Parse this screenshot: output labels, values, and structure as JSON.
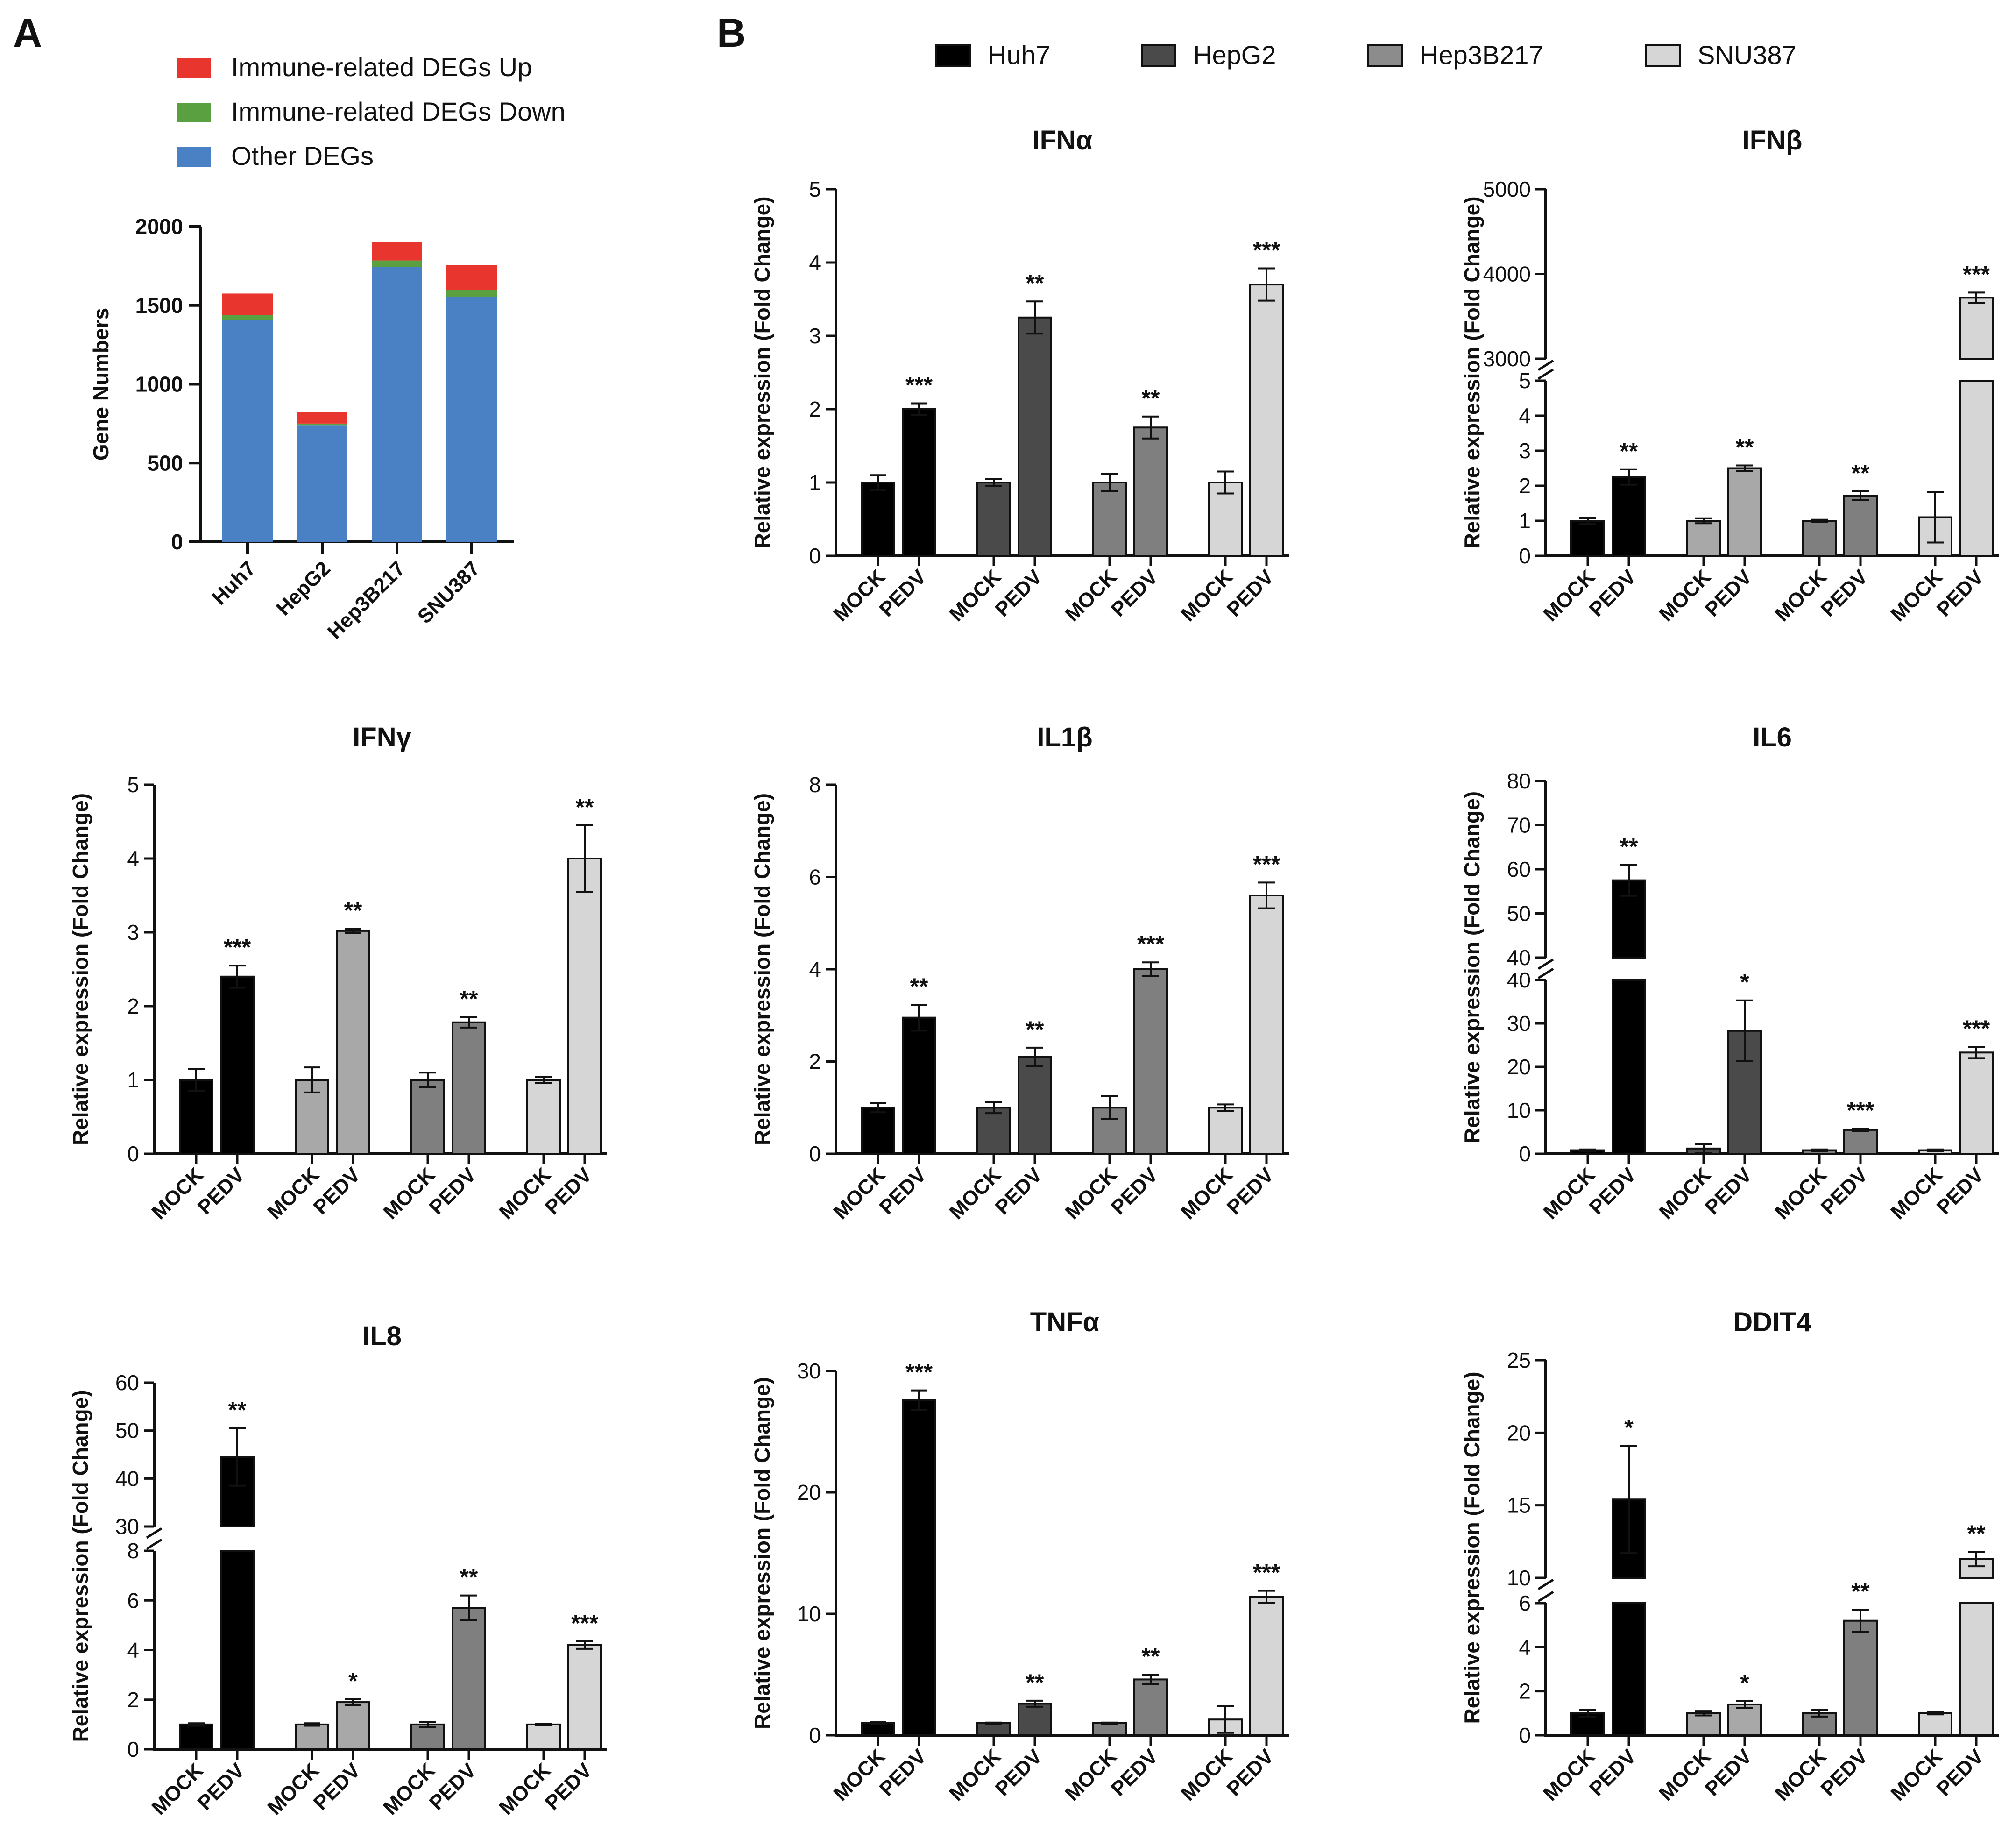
{
  "panels": {
    "a": "A",
    "b": "B"
  },
  "chart_data": [
    {
      "type": "bar",
      "stacked": true,
      "ylabel": "Gene Numbers",
      "ylim": [
        0,
        2000
      ],
      "yticks": [
        0,
        500,
        1000,
        1500,
        2000
      ],
      "categories": [
        "Huh7",
        "HepG2",
        "Hep3B217",
        "SNU387"
      ],
      "legend_position": "top",
      "series": [
        {
          "name": "Other DEGs",
          "color": "#4a80c4",
          "values": [
            1405,
            740,
            1745,
            1555
          ]
        },
        {
          "name": "Immune-related DEGs Down",
          "color": "#5aa041",
          "values": [
            35,
            10,
            40,
            45
          ]
        },
        {
          "name": "Immune-related DEGs Up",
          "color": "#e8352e",
          "values": [
            135,
            75,
            115,
            155
          ]
        }
      ]
    },
    {
      "type": "bar",
      "legend": [
        {
          "name": "Huh7",
          "color": "#000000"
        },
        {
          "name": "HepG2",
          "color": "#4a4a4a"
        },
        {
          "name": "Hep3B217",
          "color": "#8c8c8c"
        },
        {
          "name": "SNU387",
          "color": "#d6d6d6"
        }
      ],
      "legend_position": "top",
      "ylabel": "Relative expression (Fold Change)",
      "x_labels": [
        "MOCK",
        "PEDV"
      ],
      "charts": [
        {
          "title": "IFNα",
          "ylim": [
            0,
            5
          ],
          "yticks": [
            0,
            1,
            2,
            3,
            4,
            5
          ],
          "colors": [
            "#000000",
            "#4a4a4a",
            "#7f7f7f",
            "#d6d6d6"
          ],
          "mock": [
            1.0,
            1.0,
            1.0,
            1.0
          ],
          "mock_err": [
            0.1,
            0.05,
            0.12,
            0.15
          ],
          "pedv": [
            2.0,
            3.25,
            1.75,
            3.7
          ],
          "pedv_err": [
            0.08,
            0.22,
            0.15,
            0.22
          ],
          "sig": [
            "***",
            "**",
            "**",
            "***"
          ]
        },
        {
          "title": "IFNβ",
          "axis_break": true,
          "ylim_lower": [
            0,
            5
          ],
          "yticks_lower": [
            0,
            1,
            2,
            3,
            4,
            5
          ],
          "ylim_upper": [
            3000,
            5000
          ],
          "yticks_upper": [
            3000,
            4000,
            5000
          ],
          "colors": [
            "#000000",
            "#a8a8a8",
            "#7f7f7f",
            "#d6d6d6"
          ],
          "mock": [
            1.0,
            1.0,
            1.0,
            1.1
          ],
          "mock_err": [
            0.08,
            0.07,
            0.03,
            0.72
          ],
          "pedv": [
            2.25,
            2.5,
            1.72,
            3720
          ],
          "pedv_err": [
            0.22,
            0.08,
            0.12,
            60
          ],
          "sig": [
            "**",
            "**",
            "**",
            "***"
          ]
        },
        {
          "title": "IFNγ",
          "ylim": [
            0,
            5
          ],
          "yticks": [
            0,
            1,
            2,
            3,
            4,
            5
          ],
          "colors": [
            "#000000",
            "#a8a8a8",
            "#7f7f7f",
            "#d6d6d6"
          ],
          "mock": [
            1.0,
            1.0,
            1.0,
            1.0
          ],
          "mock_err": [
            0.15,
            0.17,
            0.1,
            0.04
          ],
          "pedv": [
            2.4,
            3.02,
            1.78,
            4.0
          ],
          "pedv_err": [
            0.15,
            0.03,
            0.07,
            0.45
          ],
          "sig": [
            "***",
            "**",
            "**",
            "**"
          ]
        },
        {
          "title": "IL1β",
          "ylim": [
            0,
            8
          ],
          "yticks": [
            0,
            2,
            4,
            6,
            8
          ],
          "colors": [
            "#000000",
            "#4a4a4a",
            "#7f7f7f",
            "#d6d6d6"
          ],
          "mock": [
            1.0,
            1.0,
            1.0,
            1.0
          ],
          "mock_err": [
            0.1,
            0.12,
            0.25,
            0.07
          ],
          "pedv": [
            2.95,
            2.1,
            4.0,
            5.6
          ],
          "pedv_err": [
            0.28,
            0.2,
            0.15,
            0.28
          ],
          "sig": [
            "**",
            "**",
            "***",
            "***"
          ]
        },
        {
          "title": "IL6",
          "axis_break": true,
          "ylim_lower": [
            0,
            40
          ],
          "yticks_lower": [
            0,
            10,
            20,
            30,
            40
          ],
          "ylim_upper": [
            40,
            80
          ],
          "yticks_upper": [
            40,
            50,
            60,
            70,
            80
          ],
          "colors": [
            "#000000",
            "#4a4a4a",
            "#7f7f7f",
            "#d6d6d6"
          ],
          "mock": [
            0.8,
            1.2,
            0.8,
            0.8
          ],
          "mock_err": [
            0.2,
            1.0,
            0.2,
            0.2
          ],
          "pedv": [
            57.5,
            28.3,
            5.5,
            23.3
          ],
          "pedv_err": [
            3.5,
            7.0,
            0.3,
            1.3
          ],
          "sig": [
            "**",
            "*",
            "***",
            "***"
          ]
        },
        {
          "title": "IL8",
          "axis_break": true,
          "ylim_lower": [
            0,
            8
          ],
          "yticks_lower": [
            0,
            2,
            4,
            6,
            8
          ],
          "ylim_upper": [
            30,
            60
          ],
          "yticks_upper": [
            30,
            40,
            50,
            60
          ],
          "colors": [
            "#000000",
            "#a8a8a8",
            "#7f7f7f",
            "#d6d6d6"
          ],
          "mock": [
            1.0,
            1.0,
            1.0,
            1.0
          ],
          "mock_err": [
            0.05,
            0.05,
            0.1,
            0.03
          ],
          "pedv": [
            44.5,
            1.9,
            5.7,
            4.2
          ],
          "pedv_err": [
            6.0,
            0.12,
            0.5,
            0.15
          ],
          "sig": [
            "**",
            "*",
            "**",
            "***"
          ]
        },
        {
          "title": "TNFα",
          "ylim": [
            0,
            30
          ],
          "yticks": [
            0,
            10,
            20,
            30
          ],
          "colors": [
            "#000000",
            "#4a4a4a",
            "#7f7f7f",
            "#d6d6d6"
          ],
          "mock": [
            1.0,
            1.0,
            1.0,
            1.3
          ],
          "mock_err": [
            0.1,
            0.05,
            0.05,
            1.1
          ],
          "pedv": [
            27.6,
            2.6,
            4.6,
            11.4
          ],
          "pedv_err": [
            0.8,
            0.25,
            0.4,
            0.5
          ],
          "sig": [
            "***",
            "**",
            "**",
            "***"
          ]
        },
        {
          "title": "DDIT4",
          "axis_break": true,
          "ylim_lower": [
            0,
            6
          ],
          "yticks_lower": [
            0,
            2,
            4,
            6
          ],
          "ylim_upper": [
            10,
            25
          ],
          "yticks_upper": [
            10,
            15,
            20,
            25
          ],
          "colors": [
            "#000000",
            "#a8a8a8",
            "#7f7f7f",
            "#d6d6d6"
          ],
          "mock": [
            1.0,
            1.0,
            1.0,
            1.0
          ],
          "mock_err": [
            0.15,
            0.1,
            0.15,
            0.05
          ],
          "pedv": [
            15.4,
            1.4,
            5.2,
            11.3
          ],
          "pedv_err": [
            3.7,
            0.15,
            0.5,
            0.5
          ],
          "sig": [
            "*",
            "*",
            "**",
            "**"
          ]
        }
      ]
    }
  ]
}
